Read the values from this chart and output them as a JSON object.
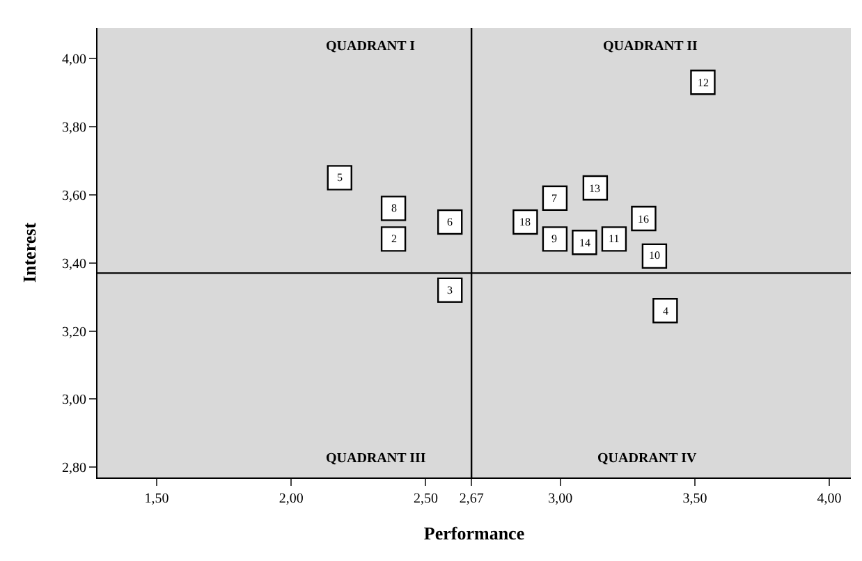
{
  "chart_data": {
    "type": "scatter",
    "xlabel": "Performance",
    "ylabel": "Interest",
    "xlim": [
      1.28,
      4.08
    ],
    "ylim": [
      2.77,
      4.09
    ],
    "xticks": [
      {
        "value": 1.5,
        "label": "1,50"
      },
      {
        "value": 2.0,
        "label": "2,00"
      },
      {
        "value": 2.5,
        "label": "2,50"
      },
      {
        "value": 2.67,
        "label": "2,67"
      },
      {
        "value": 3.0,
        "label": "3,00"
      },
      {
        "value": 3.5,
        "label": "3,50"
      },
      {
        "value": 4.0,
        "label": "4,00"
      }
    ],
    "yticks": [
      {
        "value": 2.8,
        "label": "2,80"
      },
      {
        "value": 3.0,
        "label": "3,00"
      },
      {
        "value": 3.2,
        "label": "3,20"
      },
      {
        "value": 3.4,
        "label": "3,40"
      },
      {
        "value": 3.6,
        "label": "3,60"
      },
      {
        "value": 3.8,
        "label": "3,80"
      },
      {
        "value": 4.0,
        "label": "4,00"
      }
    ],
    "x": [
      2.18,
      2.38,
      2.38,
      2.59,
      2.59,
      3.53,
      2.87,
      2.98,
      2.98,
      3.09,
      3.13,
      3.2,
      3.31,
      3.35,
      3.39
    ],
    "marker": "square",
    "grid": false,
    "series": [
      {
        "color": "#ffffff",
        "values": [
          3.65,
          3.56,
          3.47,
          3.52,
          3.32,
          3.93,
          3.52,
          3.59,
          3.47,
          3.46,
          3.62,
          3.47,
          3.53,
          3.42,
          3.26
        ]
      }
    ],
    "ref_lines": [
      {
        "axis": "x",
        "value": 2.67,
        "color": "#000000"
      },
      {
        "axis": "y",
        "value": 3.37,
        "color": "#000000"
      }
    ],
    "annotations": [
      "QUADRANT I",
      "QUADRANT II",
      "QUADRANT III",
      "QUADRANT IV",
      {
        "text": "5",
        "x": 2.18,
        "y": 3.65
      },
      {
        "text": "8",
        "x": 2.38,
        "y": 3.56
      },
      {
        "text": "2",
        "x": 2.38,
        "y": 3.47
      },
      {
        "text": "6",
        "x": 2.59,
        "y": 3.52
      },
      {
        "text": "3",
        "x": 2.59,
        "y": 3.32
      },
      {
        "text": "12",
        "x": 3.53,
        "y": 3.93
      },
      {
        "text": "18",
        "x": 2.87,
        "y": 3.52
      },
      {
        "text": "7",
        "x": 2.98,
        "y": 3.59
      },
      {
        "text": "9",
        "x": 2.98,
        "y": 3.47
      },
      {
        "text": "14",
        "x": 3.09,
        "y": 3.46
      },
      {
        "text": "13",
        "x": 3.13,
        "y": 3.62
      },
      {
        "text": "11",
        "x": 3.2,
        "y": 3.47
      },
      {
        "text": "16",
        "x": 3.31,
        "y": 3.53
      },
      {
        "text": "10",
        "x": 3.35,
        "y": 3.42
      },
      {
        "text": "4",
        "x": 3.39,
        "y": 3.26
      }
    ]
  }
}
